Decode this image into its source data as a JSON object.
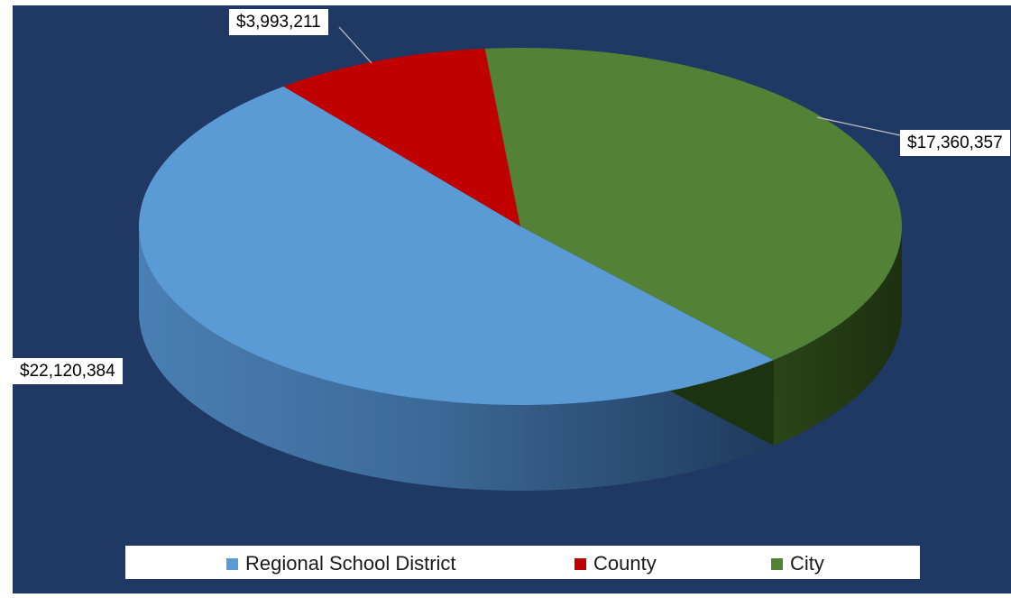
{
  "chart_data": {
    "type": "pie",
    "style": "3d",
    "series": [
      {
        "name": "Regional School District",
        "value": 22120384,
        "label": "$22,120,384",
        "color": "#5b9bd5"
      },
      {
        "name": "County",
        "value": 3993211,
        "label": "$3,993,211",
        "color": "#c00000"
      },
      {
        "name": "City",
        "value": 17360357,
        "label": "$17,360,357",
        "color": "#538135"
      }
    ],
    "background": "#1f3864",
    "legend": "bottom"
  }
}
